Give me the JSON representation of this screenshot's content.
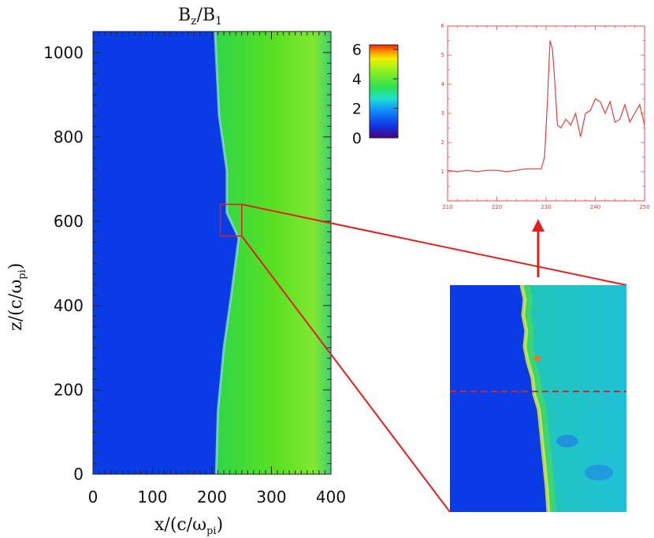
{
  "chart_data": [
    {
      "type": "heatmap",
      "title_main": "B",
      "title_sub_1": "z",
      "title_div": "/B",
      "title_sub_2": "1",
      "xlabel_main": "x/(c/ω",
      "xlabel_sub": "pi",
      "xlabel_close": ")",
      "ylabel_main": "z/(c/ω",
      "ylabel_sub": "pi",
      "ylabel_close": ")",
      "xlim": [
        0,
        400
      ],
      "ylim": [
        0,
        1050
      ],
      "x_ticks": [
        "0",
        "100",
        "200",
        "300",
        "400"
      ],
      "y_ticks": [
        "0",
        "200",
        "400",
        "600",
        "800",
        "1000"
      ],
      "colorbar": {
        "ticks": [
          "0",
          "2",
          "4",
          "6"
        ],
        "range": [
          0,
          6.3
        ]
      },
      "regions": [
        {
          "name": "upstream",
          "x_range": [
            0,
            205
          ],
          "value": 1.0
        },
        {
          "name": "shocked",
          "x_range": [
            205,
            400
          ],
          "value": 3.6
        }
      ],
      "shock_front": [
        {
          "z": 0,
          "x": 207
        },
        {
          "z": 150,
          "x": 210
        },
        {
          "z": 300,
          "x": 220
        },
        {
          "z": 420,
          "x": 232
        },
        {
          "z": 560,
          "x": 245
        },
        {
          "z": 620,
          "x": 225
        },
        {
          "z": 720,
          "x": 225
        },
        {
          "z": 850,
          "x": 212
        },
        {
          "z": 1050,
          "x": 205
        }
      ],
      "zoom_box": {
        "x_range": [
          214,
          250
        ],
        "z_range": [
          565,
          640
        ]
      }
    },
    {
      "type": "line",
      "x_ticks": [
        "210",
        "220",
        "230",
        "240",
        "250"
      ],
      "y_ticks": [
        "1",
        "2",
        "3",
        "4",
        "5",
        "6"
      ],
      "xlim": [
        210,
        250
      ],
      "ylim": [
        0,
        6
      ],
      "series": [
        {
          "x": [
            210,
            212,
            214,
            216,
            218,
            220,
            222,
            224,
            226,
            228,
            229,
            229.7,
            230.3,
            230.8,
            231.3,
            231.8,
            232.3,
            233,
            234,
            235,
            236,
            237,
            238,
            239,
            240,
            241,
            242,
            243,
            244,
            245,
            246,
            247,
            248,
            249,
            250
          ],
          "y": [
            1.05,
            1.0,
            1.05,
            1.0,
            1.05,
            1.05,
            1.0,
            1.05,
            1.1,
            1.1,
            1.1,
            1.5,
            3.5,
            5.5,
            5.2,
            4.0,
            2.6,
            2.5,
            2.8,
            2.6,
            3.0,
            2.2,
            3.0,
            3.1,
            3.5,
            3.4,
            3.0,
            3.4,
            2.7,
            2.8,
            3.3,
            2.7,
            3.0,
            3.3,
            2.6
          ]
        }
      ]
    }
  ]
}
